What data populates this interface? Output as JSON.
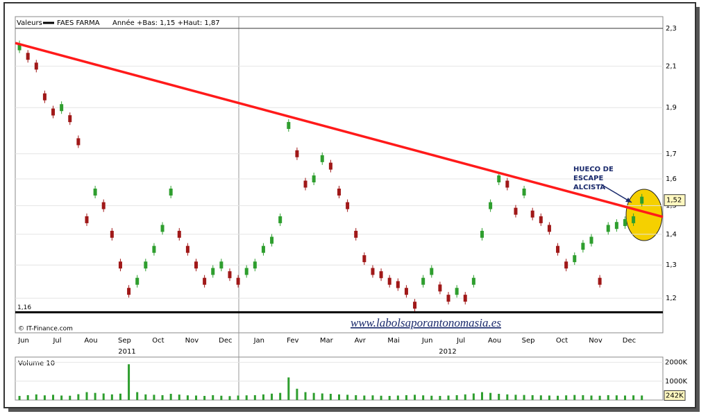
{
  "chart_data": {
    "type": "candlestick",
    "header": "Valeurs",
    "stats": "Année +Bas: 1,15 +Haut: 1,87",
    "copyright": "© IT-Finance.com",
    "watermark": "www.labolsaporantonomasia.es",
    "years": [
      "2011",
      "2012"
    ],
    "log_scale": true,
    "categories": [
      "Jun",
      null,
      null,
      null,
      "Jul",
      null,
      null,
      null,
      "Aou",
      null,
      null,
      null,
      "Sep",
      null,
      null,
      null,
      "Oct",
      null,
      null,
      null,
      "Nov",
      null,
      null,
      null,
      "Dec",
      null,
      null,
      null,
      "Jan",
      null,
      null,
      null,
      "Fev",
      null,
      null,
      null,
      "Mar",
      null,
      null,
      null,
      "Avr",
      null,
      null,
      null,
      "Mai",
      null,
      null,
      null,
      "Jun",
      null,
      null,
      null,
      "Jul",
      null,
      null,
      null,
      "Aou",
      null,
      null,
      null,
      "Sep",
      null,
      null,
      null,
      "Oct",
      null,
      null,
      null,
      "Nov",
      null,
      null,
      null,
      "Dec",
      null,
      null
    ],
    "series": [
      {
        "name": "FAES FARMA",
        "color": "#000000",
        "values": [
          2.2,
          2.15,
          2.1,
          1.95,
          1.88,
          1.9,
          1.85,
          1.75,
          1.45,
          1.55,
          1.5,
          1.4,
          1.3,
          1.22,
          1.25,
          1.3,
          1.35,
          1.42,
          1.55,
          1.4,
          1.35,
          1.3,
          1.25,
          1.28,
          1.3,
          1.27,
          1.25,
          1.28,
          1.3,
          1.35,
          1.38,
          1.45,
          1.82,
          1.7,
          1.58,
          1.6,
          1.68,
          1.65,
          1.55,
          1.5,
          1.4,
          1.32,
          1.28,
          1.27,
          1.25,
          1.24,
          1.22,
          1.18,
          1.25,
          1.28,
          1.23,
          1.2,
          1.22,
          1.2,
          1.25,
          1.4,
          1.5,
          1.6,
          1.58,
          1.48,
          1.55,
          1.47,
          1.45,
          1.42,
          1.35,
          1.3,
          1.32,
          1.36,
          1.38,
          1.25,
          1.42,
          1.43,
          1.44,
          1.45,
          1.52
        ]
      }
    ],
    "up_color": "#2e9e2e",
    "down_color": "#a01818",
    "ylim": [
      1.104,
      2.366
    ],
    "yticks": [
      {
        "value": 1.2,
        "label": "1,2"
      },
      {
        "value": 1.3,
        "label": "1,3"
      },
      {
        "value": 1.4,
        "label": "1,4"
      },
      {
        "value": 1.5,
        "label": "1,5"
      },
      {
        "value": 1.6,
        "label": "1,6"
      },
      {
        "value": 1.7,
        "label": "1,7"
      },
      {
        "value": 1.9,
        "label": "1,9"
      },
      {
        "value": 2.1,
        "label": "2,1"
      },
      {
        "value": 2.3,
        "label": "2,3"
      }
    ],
    "last": {
      "value": 1.52,
      "label": "1,52"
    },
    "support": {
      "value": 1.16,
      "label": "1,16"
    },
    "trendline": {
      "start": 2.22,
      "end": 1.46,
      "color": "#ff1a1a"
    },
    "annotation": [
      "HUECO DE",
      "ESCAPE",
      "ALCISTA"
    ],
    "volume": {
      "title": "Volume 10",
      "color": "#2e9e2e",
      "values": [
        220,
        260,
        300,
        250,
        280,
        240,
        230,
        310,
        420,
        380,
        350,
        300,
        340,
        1900,
        420,
        300,
        280,
        260,
        330,
        290,
        250,
        240,
        220,
        260,
        230,
        210,
        240,
        250,
        260,
        300,
        340,
        380,
        1200,
        600,
        420,
        380,
        350,
        330,
        300,
        280,
        260,
        240,
        250,
        230,
        220,
        240,
        260,
        280,
        250,
        230,
        220,
        240,
        260,
        300,
        350,
        420,
        380,
        330,
        300,
        280,
        270,
        260,
        250,
        240,
        230,
        250,
        270,
        260,
        240,
        230,
        260,
        250,
        240,
        250,
        242
      ],
      "ylim": [
        0,
        2280
      ],
      "yticks": [
        {
          "value": 1000,
          "label": "1000K"
        },
        {
          "value": 2000,
          "label": "2000K"
        }
      ],
      "last": {
        "value": 242,
        "label": "242K"
      }
    }
  }
}
